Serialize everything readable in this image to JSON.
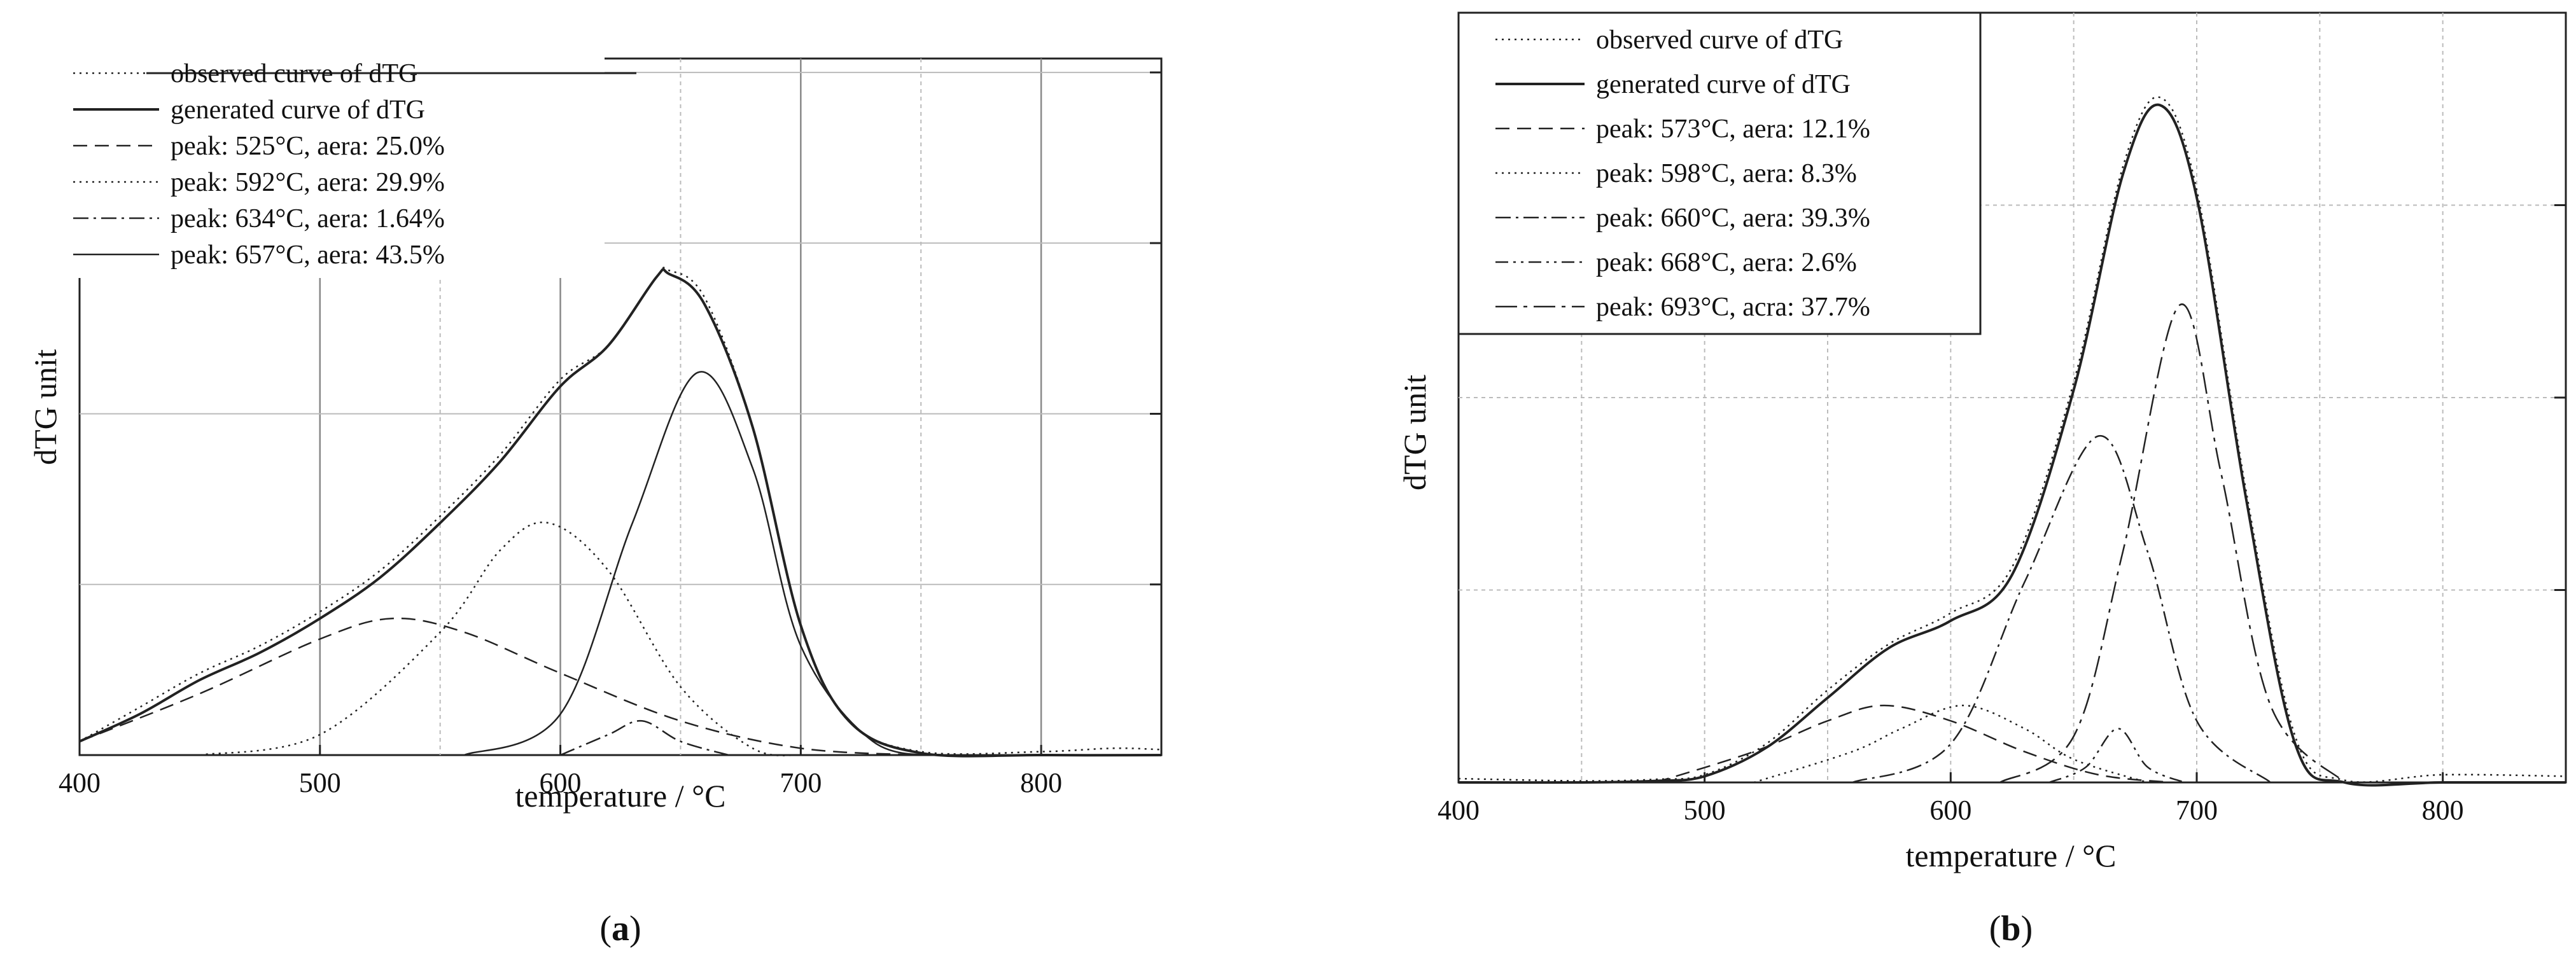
{
  "chart_data": [
    {
      "type": "line",
      "panel_label": "a",
      "xlabel": "temperature / °C",
      "ylabel": "dTG unit",
      "xlim": [
        400,
        850
      ],
      "ylim": [
        0,
        1.02
      ],
      "xticks": [
        400,
        500,
        600,
        700,
        800
      ],
      "grid": true,
      "legend_position": "top-left",
      "legend": [
        {
          "label": "observed curve of dTG",
          "style": "dotted"
        },
        {
          "label": "generated curve of dTG",
          "style": "solid"
        },
        {
          "label": "peak: 525°C, aera: 25.0%",
          "style": "dashed"
        },
        {
          "label": "peak: 592°C, aera: 29.9%",
          "style": "dotted"
        },
        {
          "label": "peak: 634°C, aera: 1.64%",
          "style": "dashdot"
        },
        {
          "label": "peak: 657°C, aera: 43.5%",
          "style": "solid-thin"
        }
      ],
      "series": [
        {
          "name": "observed curve of dTG",
          "x": [
            400,
            425,
            450,
            475,
            500,
            525,
            550,
            575,
            600,
            620,
            640,
            645,
            660,
            680,
            700,
            720,
            750,
            800,
            830,
            850
          ],
          "y": [
            0.02,
            0.07,
            0.12,
            0.16,
            0.21,
            0.27,
            0.35,
            0.44,
            0.55,
            0.6,
            0.7,
            0.71,
            0.67,
            0.48,
            0.19,
            0.05,
            0.005,
            0.005,
            0.01,
            0.008
          ]
        },
        {
          "name": "generated curve of dTG",
          "x": [
            400,
            425,
            450,
            475,
            500,
            525,
            550,
            575,
            600,
            620,
            640,
            645,
            660,
            680,
            700,
            720,
            750,
            800,
            850
          ],
          "y": [
            0.02,
            0.06,
            0.11,
            0.15,
            0.2,
            0.26,
            0.34,
            0.43,
            0.54,
            0.6,
            0.7,
            0.705,
            0.66,
            0.48,
            0.19,
            0.05,
            0.003,
            0.0,
            0.0
          ]
        },
        {
          "name": "peak: 525°C, aera: 25.0%",
          "x": [
            400,
            450,
            500,
            530,
            560,
            600,
            650,
            700,
            750
          ],
          "y": [
            0.02,
            0.09,
            0.17,
            0.2,
            0.18,
            0.12,
            0.05,
            0.01,
            0.0
          ]
        },
        {
          "name": "peak: 592°C, aera: 29.9%",
          "x": [
            450,
            500,
            550,
            575,
            595,
            620,
            650,
            680,
            700
          ],
          "y": [
            0.0,
            0.03,
            0.18,
            0.3,
            0.34,
            0.27,
            0.1,
            0.01,
            0.0
          ]
        },
        {
          "name": "peak: 634°C, aera: 1.64%",
          "x": [
            600,
            620,
            634,
            650,
            670
          ],
          "y": [
            0.0,
            0.03,
            0.05,
            0.02,
            0.0
          ]
        },
        {
          "name": "peak: 657°C, aera: 43.5%",
          "x": [
            560,
            600,
            630,
            657,
            680,
            700,
            730,
            760
          ],
          "y": [
            0.0,
            0.06,
            0.34,
            0.56,
            0.42,
            0.16,
            0.02,
            0.0
          ]
        }
      ]
    },
    {
      "type": "line",
      "panel_label": "b",
      "xlabel": "temperature / °C",
      "ylabel": "dTG unit",
      "xlim": [
        400,
        850
      ],
      "ylim": [
        0,
        1.0
      ],
      "xticks": [
        400,
        500,
        600,
        700,
        800
      ],
      "grid": true,
      "legend_position": "top-left",
      "legend": [
        {
          "label": "observed curve of dTG",
          "style": "dotted"
        },
        {
          "label": "generated curve of dTG",
          "style": "solid"
        },
        {
          "label": "peak: 573°C, aera: 12.1%",
          "style": "dashed"
        },
        {
          "label": "peak: 598°C, aera: 8.3%",
          "style": "dotted"
        },
        {
          "label": "peak: 660°C, aera: 39.3%",
          "style": "dashdot"
        },
        {
          "label": "peak: 668°C, aera: 2.6%",
          "style": "dashdotdot"
        },
        {
          "label": "peak: 693°C, acra: 37.7%",
          "style": "dashdot-long"
        }
      ],
      "series": [
        {
          "name": "observed curve of dTG",
          "x": [
            400,
            450,
            480,
            500,
            525,
            550,
            575,
            600,
            625,
            650,
            670,
            685,
            700,
            720,
            740,
            760,
            800,
            850
          ],
          "y": [
            0.005,
            0.002,
            0.004,
            0.01,
            0.05,
            0.12,
            0.18,
            0.22,
            0.28,
            0.52,
            0.8,
            0.89,
            0.77,
            0.38,
            0.06,
            0.003,
            0.01,
            0.008
          ]
        },
        {
          "name": "generated curve of dTG",
          "x": [
            400,
            450,
            480,
            500,
            525,
            550,
            575,
            600,
            625,
            650,
            670,
            685,
            700,
            720,
            740,
            760,
            800,
            850
          ],
          "y": [
            0.0,
            0.0,
            0.002,
            0.008,
            0.045,
            0.11,
            0.175,
            0.21,
            0.27,
            0.51,
            0.79,
            0.88,
            0.76,
            0.37,
            0.05,
            0.0,
            0.0,
            0.0
          ]
        },
        {
          "name": "peak: 573°C, aera: 12.1%",
          "x": [
            480,
            520,
            550,
            573,
            600,
            630,
            660,
            690
          ],
          "y": [
            0.0,
            0.04,
            0.08,
            0.1,
            0.08,
            0.04,
            0.01,
            0.0
          ]
        },
        {
          "name": "peak: 598°C, aera: 8.3%",
          "x": [
            520,
            560,
            580,
            605,
            630,
            650,
            680
          ],
          "y": [
            0.0,
            0.04,
            0.07,
            0.1,
            0.07,
            0.03,
            0.0
          ]
        },
        {
          "name": "peak: 660°C, aera: 39.3%",
          "x": [
            560,
            600,
            630,
            660,
            680,
            700,
            730
          ],
          "y": [
            0.0,
            0.05,
            0.26,
            0.45,
            0.3,
            0.08,
            0.0
          ]
        },
        {
          "name": "peak: 668°C, aera: 2.6%",
          "x": [
            640,
            655,
            668,
            680,
            695
          ],
          "y": [
            0.0,
            0.02,
            0.07,
            0.02,
            0.0
          ]
        },
        {
          "name": "peak: 693°C, acra: 37.7%",
          "x": [
            620,
            650,
            670,
            693,
            710,
            730,
            760
          ],
          "y": [
            0.0,
            0.06,
            0.3,
            0.62,
            0.4,
            0.1,
            0.0
          ]
        }
      ]
    }
  ]
}
